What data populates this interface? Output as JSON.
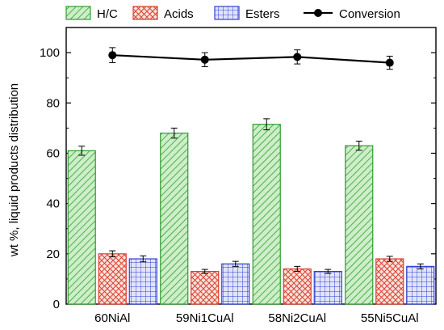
{
  "chart_data": {
    "type": "bar",
    "title": "",
    "xlabel": "",
    "ylabel": "wt %, liquid products distribution",
    "ylim": [
      0,
      110
    ],
    "yticks": [
      0,
      20,
      40,
      60,
      80,
      100
    ],
    "categories": [
      "60NiAl",
      "59Ni1CuAl",
      "58Ni2CuAl",
      "55Ni5CuAl"
    ],
    "series": [
      {
        "name": "H/C",
        "type": "bar",
        "pattern": "diagonal",
        "color": "#2f9e2f",
        "fill": "#cdeec8",
        "values": [
          61,
          68,
          71.5,
          63
        ],
        "errors": [
          1.8,
          2,
          2.2,
          1.8
        ]
      },
      {
        "name": "Acids",
        "type": "bar",
        "pattern": "crosshatch",
        "color": "#d9412f",
        "fill": "#fbe2dc",
        "values": [
          20,
          13,
          14,
          18
        ],
        "errors": [
          1.2,
          0.8,
          1,
          1
        ]
      },
      {
        "name": "Esters",
        "type": "bar",
        "pattern": "grid",
        "color": "#2f3fd0",
        "fill": "#e1e4fb",
        "values": [
          18,
          16,
          13,
          15
        ],
        "errors": [
          1.2,
          1,
          0.8,
          1
        ]
      },
      {
        "name": "Conversion",
        "type": "line",
        "marker": "circle",
        "color": "#000000",
        "values": [
          99,
          97.2,
          98.3,
          96
        ],
        "errors": [
          3,
          2.8,
          2.8,
          2.6
        ]
      }
    ],
    "legend": "top",
    "grid": false
  }
}
